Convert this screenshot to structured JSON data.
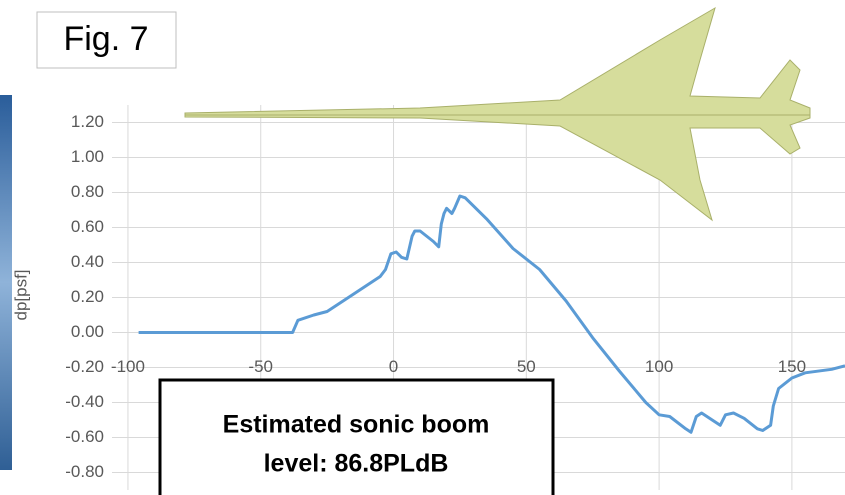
{
  "chart_data": {
    "type": "line",
    "figure_label": "Fig. 7",
    "y_label": "dp[psf]",
    "annotations": [
      "Estimated sonic boom",
      "level: 86.8PLdB"
    ],
    "x": [
      -96,
      -38,
      -36,
      -30,
      -25,
      -15,
      -5,
      -3,
      -1,
      1,
      3,
      5,
      7,
      8,
      10,
      15,
      17,
      18,
      19,
      20,
      22,
      23,
      25,
      27,
      35,
      45,
      55,
      65,
      75,
      85,
      95,
      100,
      104,
      110,
      112,
      114,
      116,
      120,
      123,
      125,
      128,
      132,
      137,
      139,
      142,
      143,
      145,
      150,
      155,
      165,
      170
    ],
    "series": [
      {
        "color": "#5b9bd5",
        "values": [
          0,
          0,
          0.07,
          0.1,
          0.12,
          0.22,
          0.32,
          0.36,
          0.45,
          0.46,
          0.43,
          0.42,
          0.55,
          0.58,
          0.58,
          0.52,
          0.49,
          0.62,
          0.68,
          0.71,
          0.68,
          0.71,
          0.78,
          0.77,
          0.65,
          0.48,
          0.36,
          0.18,
          -0.03,
          -0.22,
          -0.4,
          -0.47,
          -0.48,
          -0.55,
          -0.57,
          -0.48,
          -0.46,
          -0.5,
          -0.53,
          -0.47,
          -0.46,
          -0.49,
          -0.55,
          -0.56,
          -0.53,
          -0.42,
          -0.32,
          -0.26,
          -0.23,
          -0.21,
          -0.19
        ]
      }
    ],
    "xlim": [
      -106,
      170
    ],
    "ylim": [
      -0.9,
      1.3
    ],
    "xticks": [
      -100,
      -50,
      0,
      50,
      100,
      150
    ],
    "yticks": [
      {
        "value": 1.2,
        "label": "1.20"
      },
      {
        "value": 1,
        "label": "1.00"
      },
      {
        "value": 0.8,
        "label": "0.80"
      },
      {
        "value": 0.6,
        "label": "0.60"
      },
      {
        "value": 0.4,
        "label": "0.40"
      },
      {
        "value": 0.2,
        "label": "0.20"
      },
      {
        "value": 0,
        "label": "0.00"
      },
      {
        "value": -0.2,
        "label": "-0.20"
      },
      {
        "value": -0.4,
        "label": "-0.40"
      },
      {
        "value": -0.6,
        "label": "-0.60"
      },
      {
        "value": -0.8,
        "label": "-0.80"
      }
    ],
    "grid": true
  }
}
